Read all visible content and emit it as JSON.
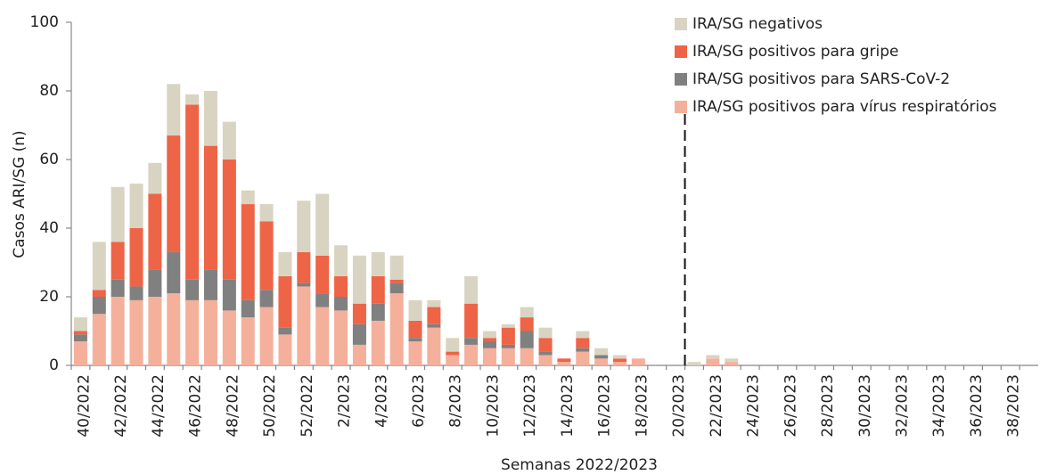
{
  "chart_data": {
    "type": "stacked_bar",
    "y_label": "Casos ARI/SG (n)",
    "x_label": "Semanas 2022/2023",
    "categories": [
      "40/2022",
      null,
      "42/2022",
      null,
      "44/2022",
      null,
      "46/2022",
      null,
      "48/2022",
      null,
      "50/2022",
      null,
      "52/2022",
      null,
      "2/2023",
      null,
      "4/2023",
      null,
      "6/2023",
      null,
      "8/2023",
      null,
      "10/2023",
      null,
      "12/2023",
      null,
      "14/2023",
      null,
      "16/2023",
      null,
      "18/2023",
      null,
      "20/2023",
      null,
      "22/2023",
      null,
      "24/2023",
      null,
      "26/2023",
      null,
      "28/2023",
      null,
      "30/2023",
      null,
      "32/2023",
      null,
      "34/2023",
      null,
      "36/2023",
      null,
      "38/2023",
      null
    ],
    "series": [
      {
        "name": "IRA/SG positivos para vírus respiratórios",
        "color": "#f4b09a",
        "values": [
          7,
          15,
          20,
          19,
          20,
          21,
          19,
          19,
          16,
          14,
          17,
          9,
          23,
          17,
          16,
          6,
          13,
          21,
          7,
          11,
          3,
          6,
          5,
          5,
          5,
          3,
          1,
          4,
          2,
          1,
          2,
          0,
          0,
          0,
          2,
          1,
          0,
          0,
          0,
          0,
          0,
          0,
          0,
          0,
          0,
          0,
          0,
          0,
          0,
          0,
          0,
          0
        ]
      },
      {
        "name": "IRA/SG positivos para SARS-CoV-2",
        "color": "#808080",
        "values": [
          2,
          5,
          5,
          4,
          8,
          12,
          6,
          9,
          9,
          5,
          5,
          2,
          1,
          4,
          4,
          6,
          5,
          3,
          1,
          1,
          0,
          2,
          2,
          1,
          5,
          1,
          0,
          1,
          1,
          0,
          0,
          0,
          0,
          0,
          0,
          0,
          0,
          0,
          0,
          0,
          0,
          0,
          0,
          0,
          0,
          0,
          0,
          0,
          0,
          0,
          0,
          0
        ]
      },
      {
        "name": "IRA/SG positivos para gripe",
        "color": "#ee6446",
        "values": [
          1,
          2,
          11,
          17,
          22,
          34,
          51,
          36,
          35,
          28,
          20,
          15,
          9,
          11,
          6,
          6,
          8,
          1,
          5,
          5,
          1,
          10,
          1,
          5,
          4,
          4,
          1,
          3,
          0,
          1,
          0,
          0,
          0,
          0,
          0,
          0,
          0,
          0,
          0,
          0,
          0,
          0,
          0,
          0,
          0,
          0,
          0,
          0,
          0,
          0,
          0,
          0
        ]
      },
      {
        "name": "IRA/SG negativos",
        "color": "#d9d4c2",
        "values": [
          4,
          14,
          16,
          13,
          9,
          15,
          3,
          16,
          11,
          4,
          5,
          7,
          15,
          18,
          9,
          14,
          7,
          7,
          6,
          2,
          4,
          8,
          2,
          1,
          3,
          3,
          0,
          2,
          2,
          1,
          0,
          0,
          0,
          1,
          1,
          1,
          0,
          0,
          0,
          0,
          0,
          0,
          0,
          0,
          0,
          0,
          0,
          0,
          0,
          0,
          0,
          0
        ]
      }
    ],
    "ylim": [
      0,
      100
    ],
    "yticks": [
      0,
      20,
      40,
      60,
      80,
      100
    ],
    "grid": false,
    "marker_category": "20/2023",
    "legend": "top-right"
  }
}
